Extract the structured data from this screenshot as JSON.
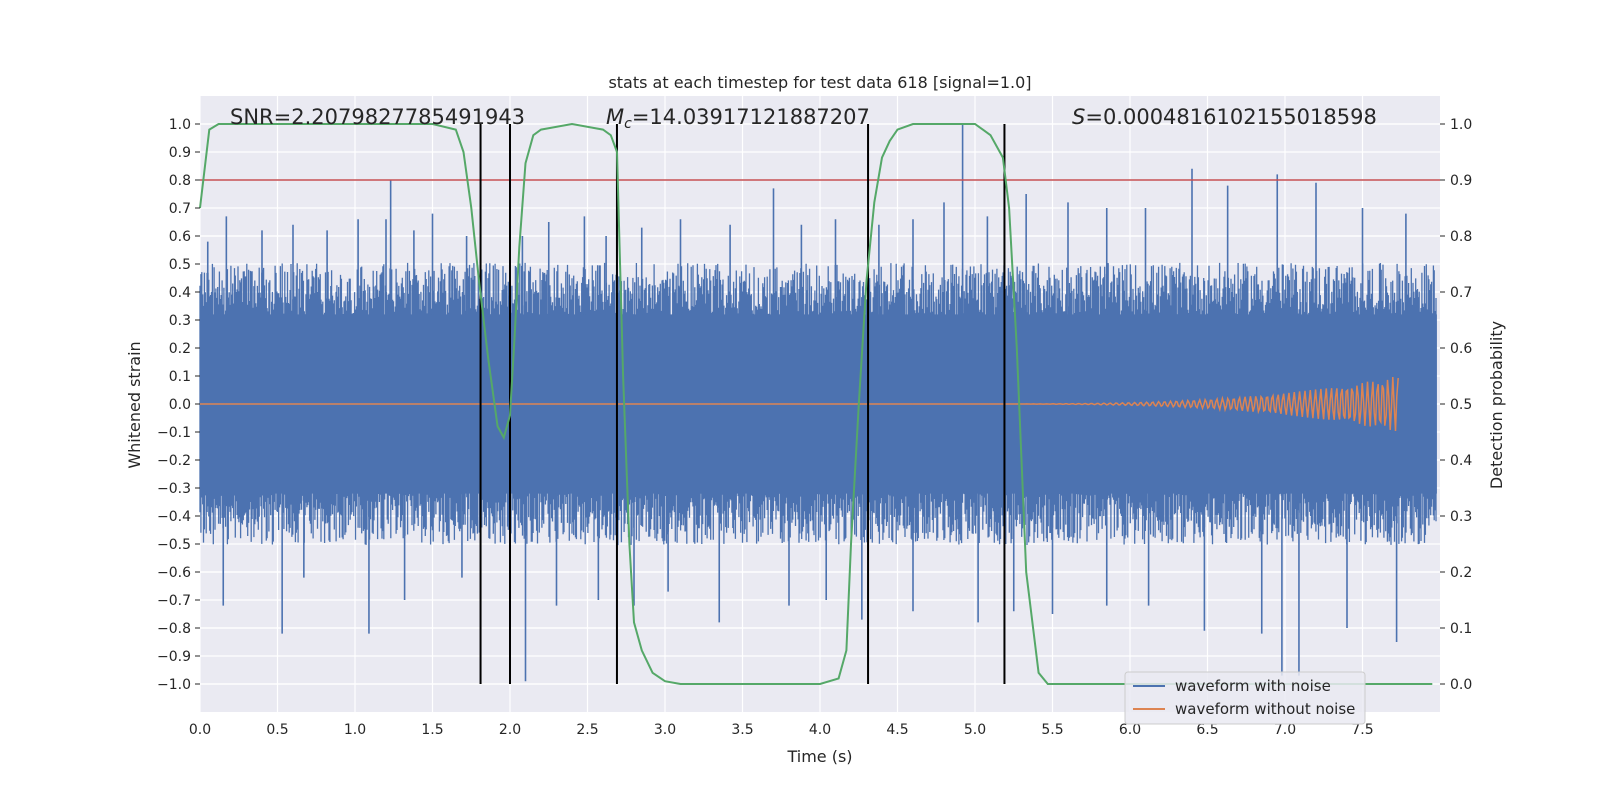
{
  "chart_data": {
    "type": "line",
    "title": "stats at each timestep for test data 618 [signal=1.0]",
    "xlabel": "Time (s)",
    "ylabel": "Whitened strain",
    "y2label": "Detection probability",
    "xlim": [
      0.0,
      8.0
    ],
    "ylim": [
      -1.1,
      1.1
    ],
    "y2lim": [
      -0.05,
      1.05
    ],
    "x_ticks": [
      0.0,
      0.5,
      1.0,
      1.5,
      2.0,
      2.5,
      3.0,
      3.5,
      4.0,
      4.5,
      5.0,
      5.5,
      6.0,
      6.5,
      7.0,
      7.5
    ],
    "x_tick_labels": [
      "0.0",
      "0.5",
      "1.0",
      "1.5",
      "2.0",
      "2.5",
      "3.0",
      "3.5",
      "4.0",
      "4.5",
      "5.0",
      "5.5",
      "6.0",
      "6.5",
      "7.0",
      "7.5"
    ],
    "y_ticks": [
      1.0,
      0.9,
      0.8,
      0.7,
      0.6,
      0.5,
      0.4,
      0.3,
      0.2,
      0.1,
      0.0,
      -0.1,
      -0.2,
      -0.3,
      -0.4,
      -0.5,
      -0.6,
      -0.7,
      -0.8,
      -0.9,
      -1.0
    ],
    "y_tick_labels": [
      "1.0",
      "0.9",
      "0.8",
      "0.7",
      "0.6",
      "0.5",
      "0.4",
      "0.3",
      "0.2",
      "0.1",
      "0.0",
      "−0.1",
      "−0.2",
      "−0.3",
      "−0.4",
      "−0.5",
      "−0.6",
      "−0.7",
      "−0.8",
      "−0.9",
      "−1.0"
    ],
    "y2_ticks": [
      1.0,
      0.9,
      0.8,
      0.7,
      0.6,
      0.5,
      0.4,
      0.3,
      0.2,
      0.1,
      0.0
    ],
    "y2_tick_labels": [
      "1.0",
      "0.9",
      "0.8",
      "0.7",
      "0.6",
      "0.5",
      "0.4",
      "0.3",
      "0.2",
      "0.1",
      "0.0"
    ],
    "annotations": {
      "snr": "SNR=2.2079827785491943",
      "mc_symbol": "M",
      "mc_subscript": "c",
      "mc_value": "=14.03917121887207",
      "s_symbol": "S",
      "s_value": "=0.0004816102155018598"
    },
    "threshold": {
      "y": 0.8,
      "color": "#c44e52"
    },
    "vertical_lines": [
      1.81,
      2.0,
      2.69,
      4.31,
      5.19
    ],
    "vertical_lines_ylim": [
      -1.0,
      1.0
    ],
    "series": [
      {
        "name": "waveform with noise",
        "color": "#4c72b0",
        "axis": "left",
        "description": "dense noise filling roughly ±0.45 with spikes up to ±0.85 (peak ~1.0 near t=4.92)",
        "baseline_amplitude": 0.42,
        "spikes": [
          [
            0.05,
            0.58
          ],
          [
            0.17,
            0.67
          ],
          [
            0.4,
            0.62
          ],
          [
            0.6,
            0.64
          ],
          [
            0.82,
            0.62
          ],
          [
            1.02,
            0.66
          ],
          [
            1.2,
            0.66
          ],
          [
            1.23,
            0.8
          ],
          [
            1.38,
            0.62
          ],
          [
            1.5,
            0.68
          ],
          [
            1.72,
            0.6
          ],
          [
            2.08,
            0.6
          ],
          [
            2.25,
            0.65
          ],
          [
            2.48,
            0.67
          ],
          [
            2.62,
            0.6
          ],
          [
            2.85,
            0.63
          ],
          [
            3.1,
            0.66
          ],
          [
            3.42,
            0.64
          ],
          [
            3.7,
            0.77
          ],
          [
            3.88,
            0.64
          ],
          [
            4.1,
            0.66
          ],
          [
            4.38,
            0.64
          ],
          [
            4.6,
            0.66
          ],
          [
            4.8,
            0.72
          ],
          [
            4.92,
            1.0
          ],
          [
            5.08,
            0.67
          ],
          [
            5.33,
            0.75
          ],
          [
            5.6,
            0.72
          ],
          [
            5.85,
            0.7
          ],
          [
            6.1,
            0.7
          ],
          [
            6.4,
            0.84
          ],
          [
            6.63,
            0.78
          ],
          [
            6.95,
            0.82
          ],
          [
            7.2,
            0.79
          ],
          [
            7.5,
            0.7
          ],
          [
            7.78,
            0.68
          ],
          [
            0.15,
            -0.72
          ],
          [
            0.53,
            -0.82
          ],
          [
            0.67,
            -0.62
          ],
          [
            1.09,
            -0.82
          ],
          [
            1.32,
            -0.7
          ],
          [
            1.69,
            -0.62
          ],
          [
            2.1,
            -0.99
          ],
          [
            2.3,
            -0.72
          ],
          [
            2.57,
            -0.7
          ],
          [
            2.8,
            -0.72
          ],
          [
            3.02,
            -0.67
          ],
          [
            3.35,
            -0.78
          ],
          [
            3.8,
            -0.72
          ],
          [
            4.04,
            -0.7
          ],
          [
            4.27,
            -0.77
          ],
          [
            4.6,
            -0.74
          ],
          [
            5.02,
            -0.78
          ],
          [
            5.25,
            -0.74
          ],
          [
            5.5,
            -0.75
          ],
          [
            5.85,
            -0.72
          ],
          [
            6.12,
            -0.72
          ],
          [
            6.48,
            -0.81
          ],
          [
            6.85,
            -0.82
          ],
          [
            6.98,
            -0.97
          ],
          [
            7.09,
            -0.97
          ],
          [
            7.4,
            -0.8
          ],
          [
            7.72,
            -0.85
          ]
        ]
      },
      {
        "name": "waveform without noise",
        "color": "#dd8452",
        "axis": "left",
        "description": "chirp growing from ~0 to ±0.1 near t=7.73, then ending",
        "chirp_start": 5.0,
        "chirp_end": 7.73,
        "chirp_peak": 0.1
      },
      {
        "name": "detection probability",
        "color": "#55a868",
        "axis": "right",
        "x": [
          0.0,
          0.06,
          0.12,
          0.2,
          0.6,
          1.0,
          1.5,
          1.65,
          1.7,
          1.75,
          1.8,
          1.86,
          1.92,
          1.96,
          2.0,
          2.03,
          2.06,
          2.1,
          2.15,
          2.2,
          2.4,
          2.6,
          2.65,
          2.69,
          2.73,
          2.77,
          2.8,
          2.85,
          2.92,
          3.0,
          3.1,
          3.5,
          3.8,
          4.0,
          4.12,
          4.17,
          4.2,
          4.25,
          4.3,
          4.35,
          4.4,
          4.45,
          4.5,
          4.6,
          5.0,
          5.05,
          5.1,
          5.18,
          5.22,
          5.27,
          5.33,
          5.41,
          5.47,
          6.0,
          7.0,
          7.95
        ],
        "y": [
          0.85,
          0.99,
          1.0,
          1.0,
          1.0,
          1.0,
          1.0,
          0.99,
          0.95,
          0.85,
          0.72,
          0.58,
          0.46,
          0.44,
          0.48,
          0.62,
          0.78,
          0.93,
          0.98,
          0.99,
          1.0,
          0.99,
          0.98,
          0.95,
          0.55,
          0.25,
          0.11,
          0.06,
          0.02,
          0.005,
          0.0,
          0.0,
          0.0,
          0.0,
          0.01,
          0.06,
          0.25,
          0.5,
          0.72,
          0.86,
          0.94,
          0.97,
          0.99,
          1.0,
          1.0,
          0.99,
          0.98,
          0.94,
          0.85,
          0.6,
          0.2,
          0.02,
          0.0,
          0.0,
          0.0,
          0.0
        ]
      }
    ],
    "legend": {
      "location": "lower-right",
      "entries": [
        "waveform with noise",
        "waveform without noise"
      ]
    }
  }
}
